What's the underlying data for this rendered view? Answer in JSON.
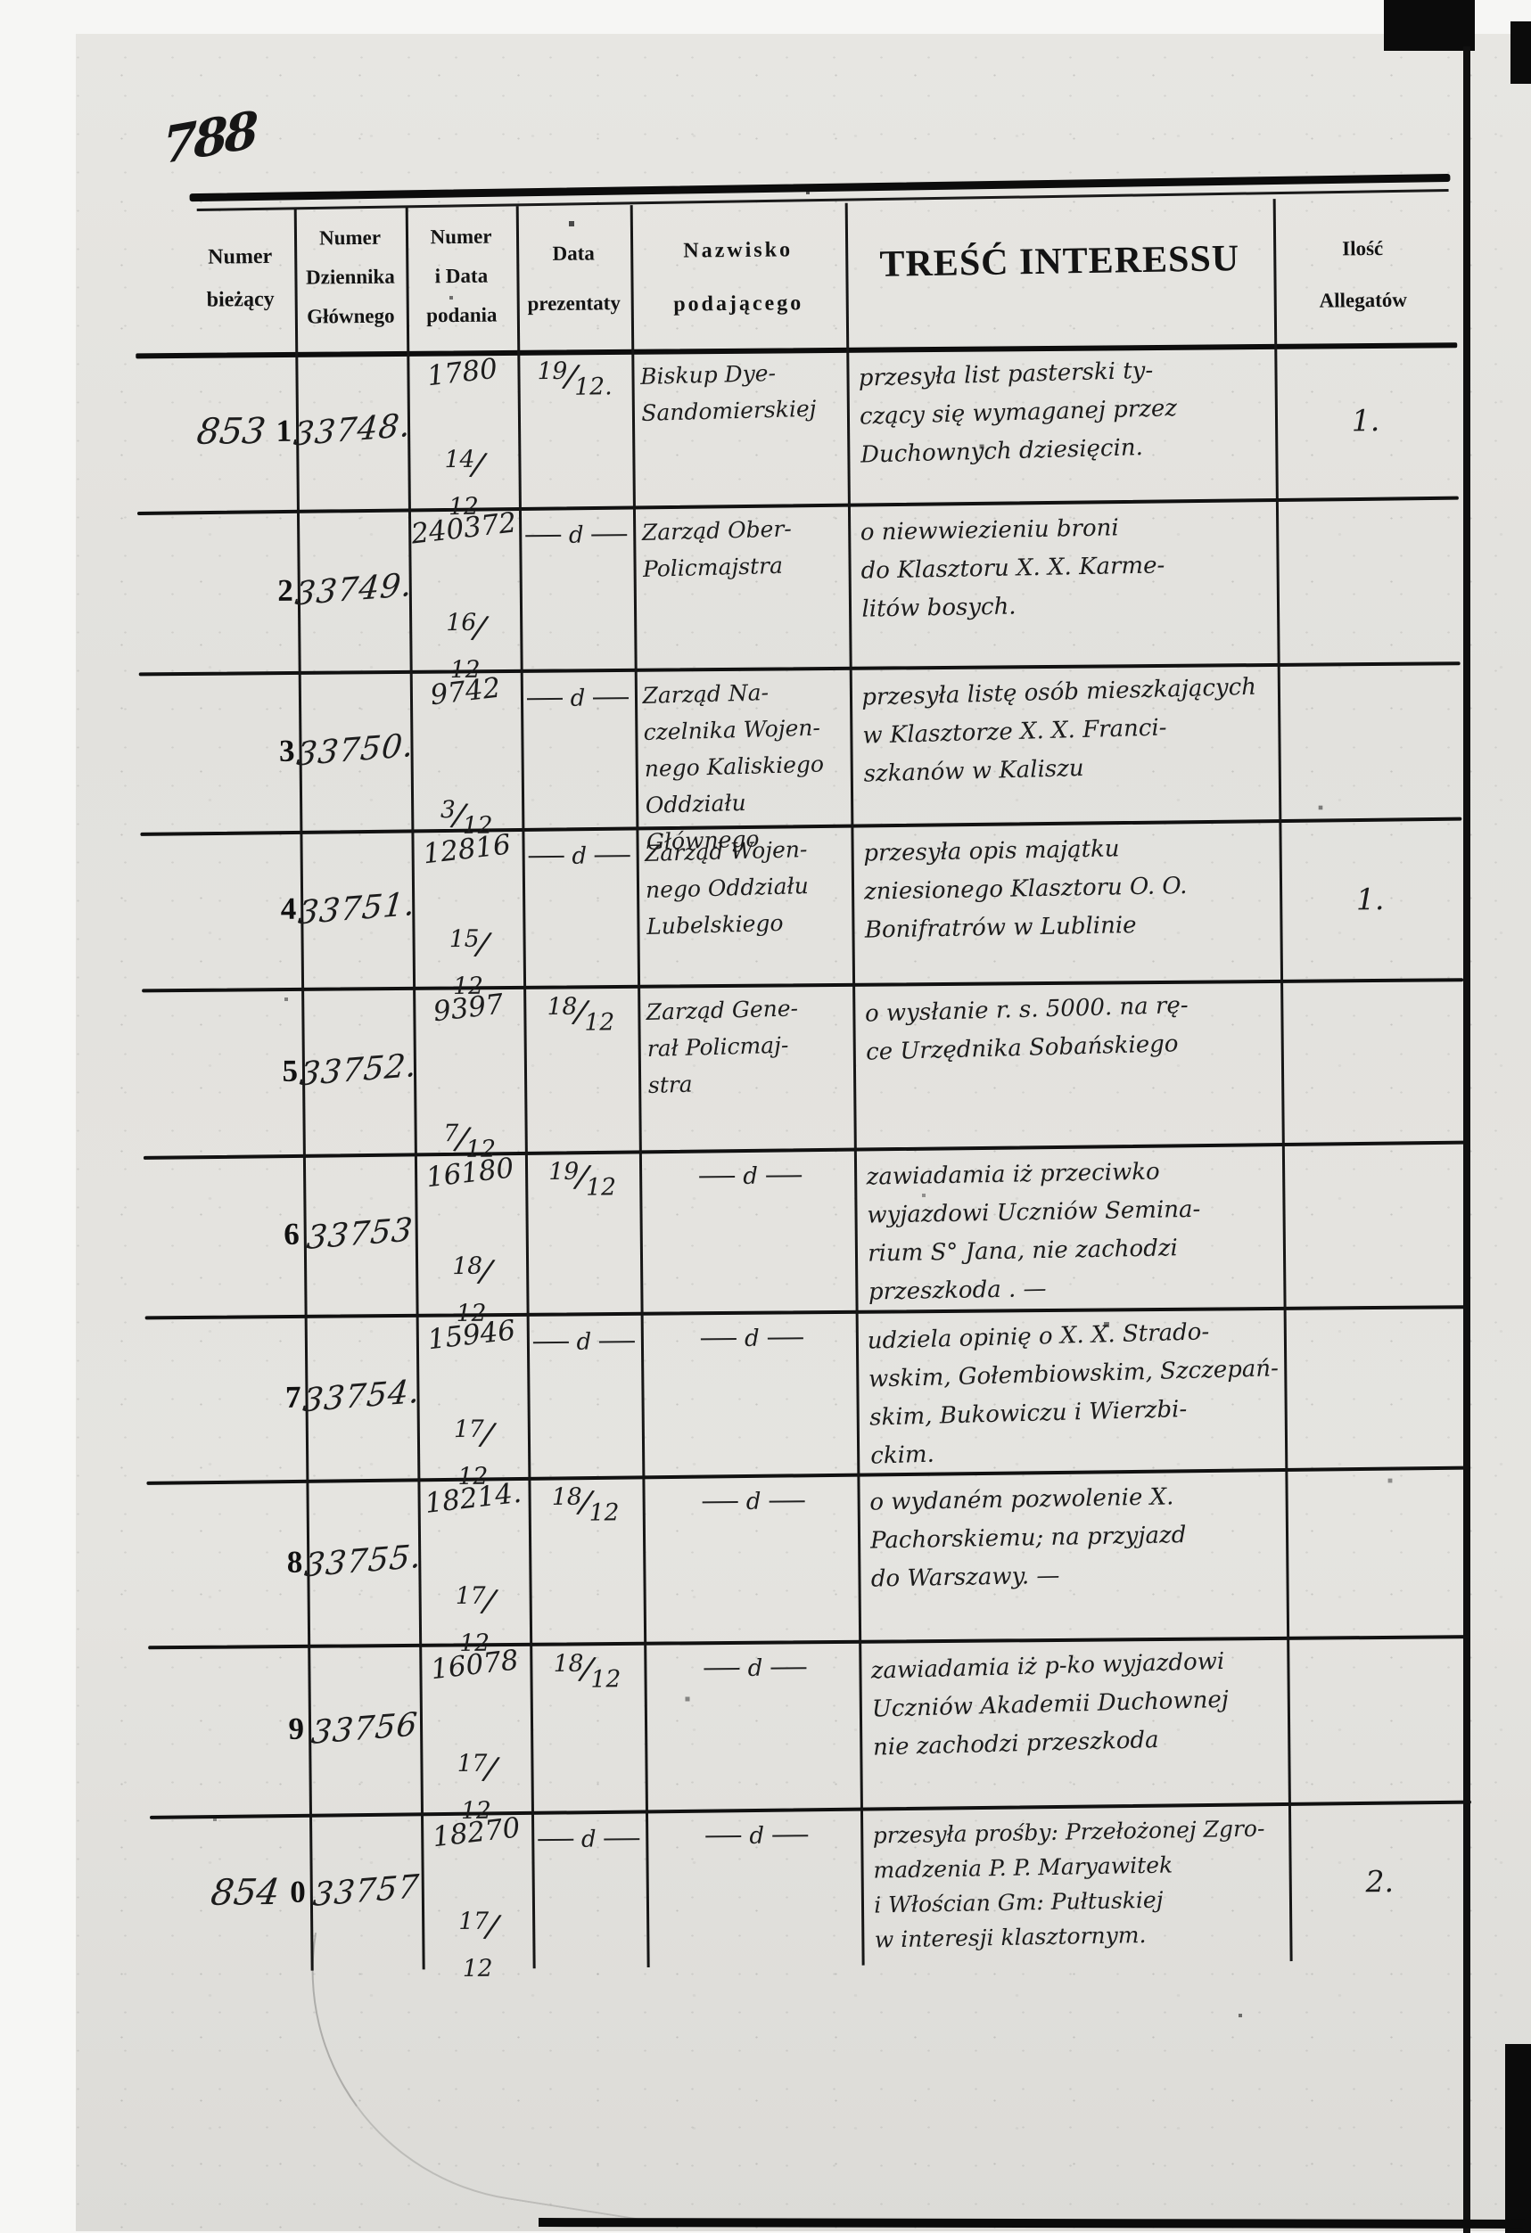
{
  "document": {
    "page_number": "788",
    "colors": {
      "paper": "#e3e2de",
      "ink": "#1c1c1c",
      "rule": "#101010"
    }
  },
  "table": {
    "ditto_char": "d",
    "header": {
      "numer_biezacy": "Numer\nbieżący",
      "numer_dziennika": "Numer\nDziennika\nGłównego",
      "numer_podania": "Numer\ni Data\npodania",
      "data_prezentaty": "Data\nprezentaty",
      "nazwisko": "Nazwisko\npodającego",
      "tresc": "TREŚĆ INTERESSU",
      "ilosc_allegatow": "Ilość\nAllegatów"
    },
    "rows": [
      {
        "biezacy_hand": "853",
        "biezacy": "1",
        "dziennik": "33748.",
        "podanie_numer": "1780",
        "podanie_data": "14/12",
        "prezentata": "19/12.",
        "nazwisko": "Biskup Dye-\nSandomierskiej",
        "tresc": "przesyła list pasterski ty-\nczący się wymaganej przez\nDuchownych dziesięcin.",
        "allegaty": "1."
      },
      {
        "biezacy_hand": "",
        "biezacy": "2",
        "dziennik": "33749.",
        "podanie_numer": "240372",
        "podanie_data": "16/12",
        "prezentata": "ditto",
        "nazwisko": "Zarząd Ober-\nPolicmajstra",
        "tresc": "o niewwiezieniu broni\ndo Klasztoru X. X. Karme-\nlitów bosych.",
        "allegaty": ""
      },
      {
        "biezacy_hand": "",
        "biezacy": "3",
        "dziennik": "33750.",
        "podanie_numer": "9742",
        "podanie_data": "3/12",
        "prezentata": "ditto",
        "nazwisko": "Zarząd Na-\nczelnika Wojen-\nnego Kaliskiego\nOddziału Głównego",
        "tresc": "przesyła listę osób mieszkających\nw Klasztorze X. X. Franci-\nszkanów w Kaliszu",
        "allegaty": ""
      },
      {
        "biezacy_hand": "",
        "biezacy": "4",
        "dziennik": "33751.",
        "podanie_numer": "12816",
        "podanie_data": "15/12",
        "prezentata": "ditto",
        "nazwisko": "Zarząd Wojen-\nnego Oddziału\nLubelskiego",
        "tresc": "przesyła opis majątku\nzniesionego Klasztoru O. O.\nBonifratrów w Lublinie",
        "allegaty": "1."
      },
      {
        "biezacy_hand": "",
        "biezacy": "5",
        "dziennik": "33752.",
        "podanie_numer": "9397",
        "podanie_data": "7/12",
        "prezentata": "18/12",
        "nazwisko": "Zarząd Gene-\nrał Policmaj-\nstra",
        "tresc": "o wysłanie r. s. 5000. na rę-\nce Urzędnika Sobańskiego",
        "allegaty": ""
      },
      {
        "biezacy_hand": "",
        "biezacy": "6",
        "dziennik": "33753",
        "podanie_numer": "16180",
        "podanie_data": "18/12",
        "prezentata": "19/12",
        "nazwisko": "ditto",
        "tresc": "zawiadamia iż przeciwko\nwyjazdowi Uczniów Semina-\nrium S° Jana, nie zachodzi\nprzeszkoda . —",
        "allegaty": ""
      },
      {
        "biezacy_hand": "",
        "biezacy": "7",
        "dziennik": "33754.",
        "podanie_numer": "15946",
        "podanie_data": "17/12",
        "prezentata": "ditto",
        "nazwisko": "ditto",
        "tresc": "udziela opinię o X. X. Strado-\nwskim, Gołembiowskim, Szczepań-\nskim, Bukowiczu i Wierzbi-\nckim.",
        "allegaty": ""
      },
      {
        "biezacy_hand": "",
        "biezacy": "8",
        "dziennik": "33755.",
        "podanie_numer": "18214.",
        "podanie_data": "17/12",
        "prezentata": "18/12",
        "nazwisko": "ditto",
        "tresc": "o wydaném pozwolenie X.\nPachorskiemu; na przyjazd\ndo Warszawy. —",
        "allegaty": ""
      },
      {
        "biezacy_hand": "",
        "biezacy": "9",
        "dziennik": "33756",
        "podanie_numer": "16078",
        "podanie_data": "17/12",
        "prezentata": "18/12",
        "nazwisko": "ditto",
        "tresc": "zawiadamia iż p-ko wyjazdowi\nUczniów Akademii Duchownej\nnie zachodzi przeszkoda",
        "allegaty": ""
      },
      {
        "biezacy_hand": "854",
        "biezacy": "0",
        "dziennik": "33757",
        "podanie_numer": "18270",
        "podanie_data": "17/12",
        "prezentata": "ditto",
        "nazwisko": "ditto",
        "tresc": "przesyła prośby: Przełożonej Zgro-\nmadzenia P. P. Maryawitek\ni Włościan Gm: Pułtuskiej\nw interesji klasztornym.",
        "allegaty": "2."
      }
    ]
  }
}
